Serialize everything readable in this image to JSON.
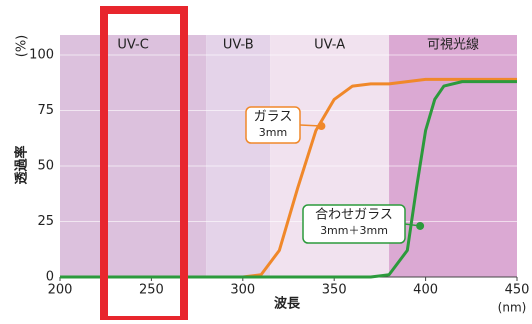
{
  "chart_data": {
    "type": "line",
    "xlabel": "波長",
    "xunit": "(nm)",
    "ylabel": "透過率",
    "yunit": "(%)",
    "xlim": [
      200,
      450
    ],
    "xticks": [
      200,
      250,
      300,
      350,
      400,
      450
    ],
    "ylim": [
      0,
      100
    ],
    "yticks": [
      0,
      25,
      50,
      75,
      100
    ],
    "grid": true,
    "bands": [
      {
        "name": "UV-C",
        "range": [
          200,
          280
        ],
        "color": "#dcc1dd"
      },
      {
        "name": "UV-B",
        "range": [
          280,
          315
        ],
        "color": "#e4d3e9"
      },
      {
        "name": "UV-A",
        "range": [
          315,
          380
        ],
        "color": "#f1e2ef"
      },
      {
        "name": "可視光線",
        "range": [
          380,
          450
        ],
        "color": "#dba9d3"
      }
    ],
    "series": [
      {
        "name": "ガラス 3mm",
        "color": "#f0882a",
        "x": [
          200,
          300,
          310,
          320,
          330,
          340,
          350,
          360,
          370,
          380,
          390,
          400,
          420,
          450
        ],
        "values": [
          0,
          0,
          1,
          12,
          40,
          66,
          80,
          86,
          87,
          87,
          88,
          89,
          89,
          89
        ]
      },
      {
        "name": "合わせガラス 3mm＋3mm",
        "color": "#2c9a3c",
        "x": [
          200,
          370,
          380,
          390,
          395,
          400,
          405,
          410,
          420,
          450
        ],
        "values": [
          0,
          0,
          1,
          12,
          40,
          66,
          80,
          86,
          88,
          88
        ]
      }
    ],
    "annotations": [
      {
        "lines": [
          "ガラス",
          "3mm"
        ],
        "x": 343,
        "y": 68,
        "color": "#f0882a"
      },
      {
        "lines": [
          "合わせガラス",
          "3mm＋3mm"
        ],
        "x": 397,
        "y": 23,
        "color": "#2c9a3c"
      }
    ]
  }
}
